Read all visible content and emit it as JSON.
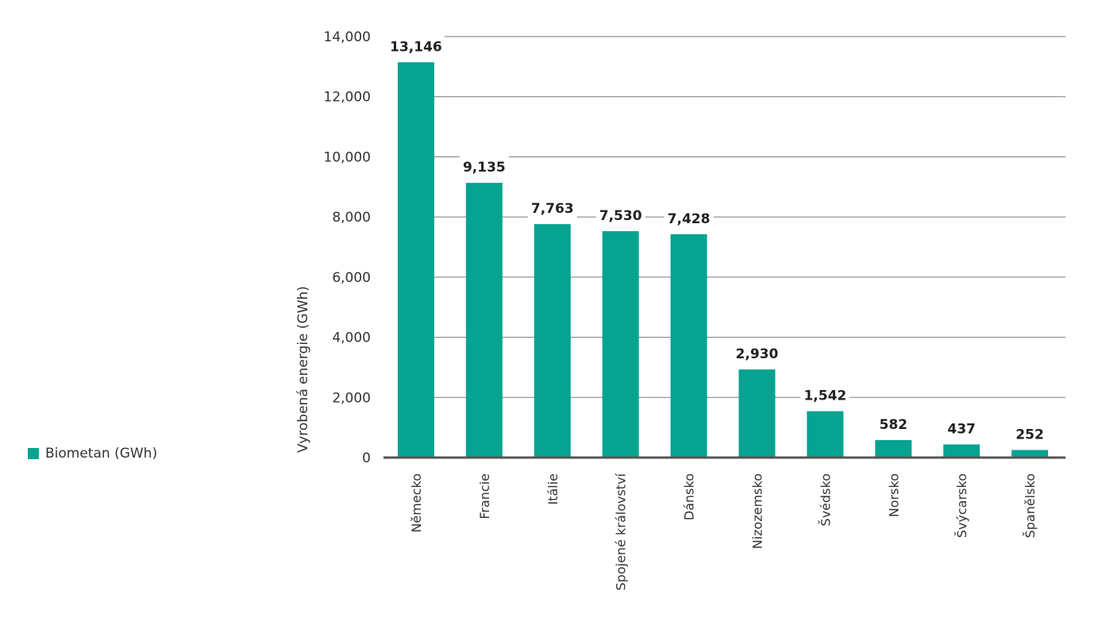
{
  "chart_data": {
    "type": "bar",
    "categories": [
      "Německo",
      "Francie",
      "Itálie",
      "Spojené království",
      "Dánsko",
      "Nizozemsko",
      "Švédsko",
      "Norsko",
      "Švýcarsko",
      "Španělsko"
    ],
    "series": [
      {
        "name": "Biometan (GWh)",
        "values": [
          13146,
          9135,
          7763,
          7530,
          7428,
          2930,
          1542,
          582,
          437,
          252
        ],
        "color": "#06a391"
      }
    ],
    "data_labels": [
      "13,146",
      "9,135",
      "7,763",
      "7,530",
      "7,428",
      "2,930",
      "1,542",
      "582",
      "437",
      "252"
    ],
    "yticks": [
      0,
      2000,
      4000,
      6000,
      8000,
      10000,
      12000,
      14000
    ],
    "ytick_labels": [
      "0",
      "2,000",
      "4,000",
      "6,000",
      "8,000",
      "10,000",
      "12,000",
      "14,000"
    ],
    "ylim": [
      0,
      14000
    ],
    "xlabel": "",
    "ylabel": "Vyrobená energie (GWh)",
    "grid": true,
    "legend_position": "left"
  },
  "legend": {
    "label": "Biometan (GWh)"
  },
  "colors": {
    "bar": "#06a391",
    "grid": "#7a7a7a",
    "axis": "#555555",
    "text": "#2b2b2b"
  }
}
